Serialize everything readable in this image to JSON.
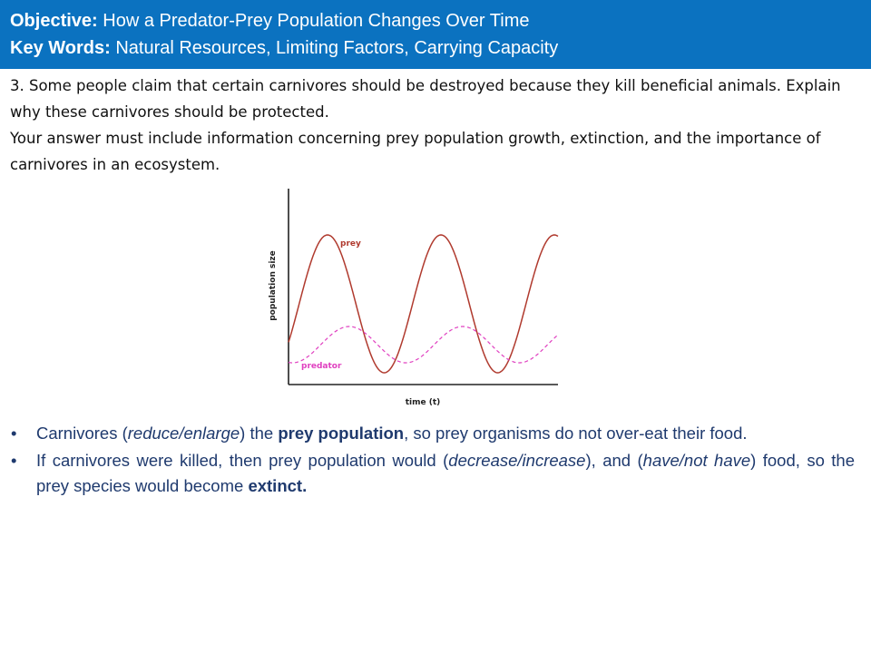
{
  "header": {
    "objective_label": "Objective:",
    "objective_text": " How a Predator-Prey Population Changes Over Time",
    "keywords_label": "Key Words:",
    "keywords_text": " Natural Resources, Limiting Factors, Carrying Capacity"
  },
  "question": {
    "line1": "3. Some people claim that certain carnivores should be destroyed because they kill beneficial animals. Explain why these carnivores should be protected.",
    "line2": "Your answer must include information concerning prey population growth, extinction, and the importance of carnivores in an ecosystem."
  },
  "graph": {
    "ylabel": "population size",
    "xlabel": "time (t)",
    "prey_label": "prey",
    "predator_label": "predator",
    "prey_color": "#b03a2e",
    "predator_color": "#e040c0"
  },
  "bullets": {
    "b1": {
      "p1": "Carnivores (",
      "p2": "reduce/enlarge",
      "p3": ") the ",
      "p4": "prey population",
      "p5": ", so prey organisms do not over-eat their food."
    },
    "b2": {
      "p1": "If carnivores were killed, then prey population would (",
      "p2": "decrease/increase",
      "p3": "), and (",
      "p4": "have/not have",
      "p5": ") food, so the prey species would become ",
      "p6": "extinct."
    },
    "bullet_char": "•"
  }
}
